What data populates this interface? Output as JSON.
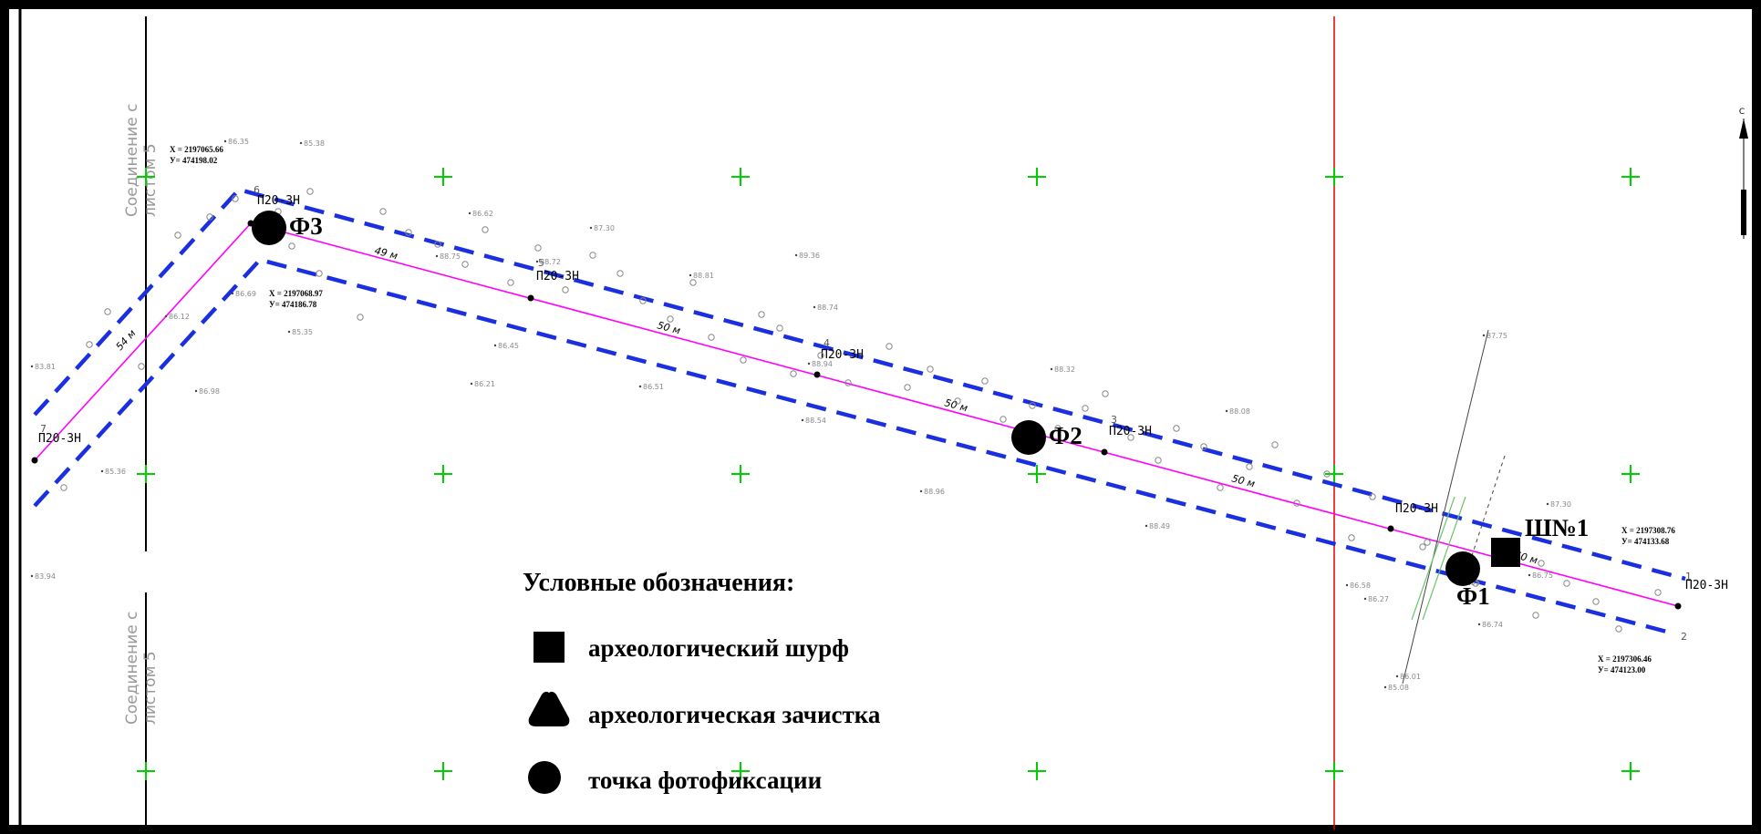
{
  "sheet_join": {
    "top": [
      "Соединение с",
      "листом 5"
    ],
    "bottom": [
      "Соединение с",
      "листом 5"
    ]
  },
  "photo_points": [
    {
      "label": "Ф3"
    },
    {
      "label": "Ф2"
    },
    {
      "label": "Ф1"
    }
  ],
  "test_pit": {
    "label": "Ш№1"
  },
  "coordinates": [
    {
      "x": "X = 2197065.66",
      "y": "У= 474198.02"
    },
    {
      "x": "X = 2197068.97",
      "y": "У= 474186.78"
    },
    {
      "x": "X = 2197308.76",
      "y": "У= 474133.68"
    },
    {
      "x": "X = 2197306.46",
      "y": "У= 474123.00"
    }
  ],
  "pipe_labels": [
    "П20-3Н",
    "П20-3Н",
    "П20-3Н",
    "П20-3Н",
    "П20-3Н",
    "П20-3Н",
    "П20-3Н"
  ],
  "segment_lengths": [
    "54 м",
    "49 м",
    "50 м",
    "50 м",
    "50 м",
    "50 м"
  ],
  "vertex_numbers": [
    "7",
    "6",
    "5",
    "4",
    "3",
    "2",
    "1"
  ],
  "spot_heights": [
    "86.35",
    "85.38",
    "86.62",
    "87.30",
    "88.75",
    "88.72",
    "88.81",
    "89.36",
    "88.74",
    "88.94",
    "88.32",
    "88.08",
    "88.49",
    "88.96",
    "83.81",
    "83.94",
    "85.36",
    "86.98",
    "86.12",
    "86.69",
    "85.35",
    "86.45",
    "86.21",
    "86.51",
    "88.54",
    "87.75",
    "87.30",
    "86.58",
    "86.27",
    "86.01",
    "85.08",
    "86.74",
    "86.75",
    "86.55"
  ],
  "legend": {
    "title": "Условные обозначения:",
    "items": [
      {
        "symbol": "square",
        "label": "археологический шурф"
      },
      {
        "symbol": "triangle",
        "label": "археологическая зачистка"
      },
      {
        "symbol": "circle",
        "label": "точка фотофиксации"
      }
    ]
  },
  "north_arrow": {
    "letter": "С"
  },
  "colors": {
    "frame": "#000000",
    "route_axis": "#ff00ff",
    "corridor": "#1a2fe0",
    "grid_cross": "#00d000",
    "sheet_boundary": "#e00000",
    "text_gray": "#8a8a8a"
  }
}
